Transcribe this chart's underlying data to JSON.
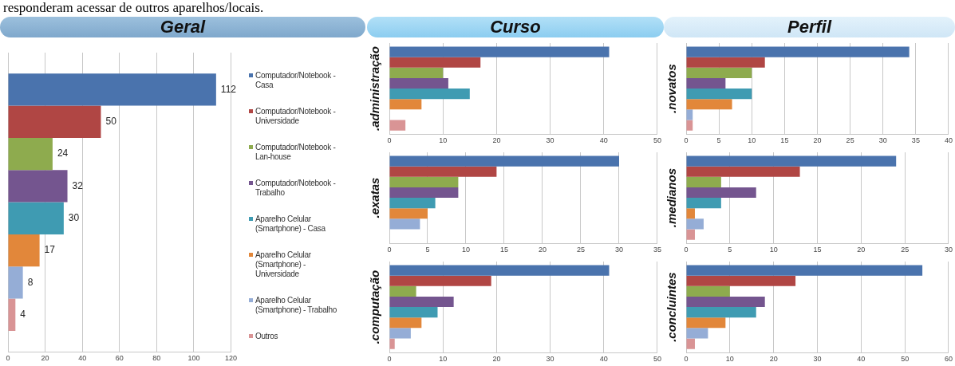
{
  "chart_data": [
    {
      "type": "bar",
      "orientation": "horizontal",
      "title": "Geral",
      "annotations": [
        "responderam acessar de outros aparelhos/locais."
      ],
      "categories": [
        null
      ],
      "xlim": [
        0,
        120
      ],
      "xticks": [
        0,
        20,
        40,
        60,
        80,
        100,
        120
      ],
      "grid": "x",
      "legend": "right",
      "data_labels": true,
      "series": [
        {
          "name": "Computador/Notebook - Casa",
          "color": "#4a73ad",
          "values": [
            112
          ]
        },
        {
          "name": "Computador/Notebook - Universidade",
          "color": "#b04644",
          "values": [
            50
          ]
        },
        {
          "name": "Computador/Notebook - Lan-house",
          "color": "#8eab4e",
          "values": [
            24
          ]
        },
        {
          "name": "Computador/Notebook - Trabalho",
          "color": "#74558f",
          "values": [
            32
          ]
        },
        {
          "name": "Aparelho Celular (Smartphone) - Casa",
          "color": "#3f9bb2",
          "values": [
            30
          ]
        },
        {
          "name": "Aparelho Celular (Smartphone) - Universidade",
          "color": "#e2873a",
          "values": [
            17
          ]
        },
        {
          "name": "Aparelho Celular (Smartphone) - Trabalho",
          "color": "#95add6",
          "values": [
            8
          ]
        },
        {
          "name": "Outros",
          "color": "#d99495",
          "values": [
            4
          ]
        }
      ]
    },
    {
      "type": "bar",
      "orientation": "horizontal",
      "title": "Curso",
      "ylabel": ".administração",
      "categories": [
        null
      ],
      "xlim": [
        0,
        50
      ],
      "xticks": [
        0,
        10,
        20,
        30,
        40,
        50
      ],
      "grid": "x",
      "series": [
        {
          "color": "#4a73ad",
          "values": [
            41
          ]
        },
        {
          "color": "#b04644",
          "values": [
            17
          ]
        },
        {
          "color": "#8eab4e",
          "values": [
            10
          ]
        },
        {
          "color": "#74558f",
          "values": [
            11
          ]
        },
        {
          "color": "#3f9bb2",
          "values": [
            15
          ]
        },
        {
          "color": "#e2873a",
          "values": [
            6
          ]
        },
        {
          "color": "#95add6",
          "values": [
            null
          ]
        },
        {
          "color": "#d99495",
          "values": [
            3
          ]
        }
      ]
    },
    {
      "type": "bar",
      "orientation": "horizontal",
      "ylabel": ".exatas",
      "categories": [
        null
      ],
      "xlim": [
        0,
        35
      ],
      "xticks": [
        0,
        5,
        10,
        15,
        20,
        25,
        30,
        35
      ],
      "grid": "x",
      "series": [
        {
          "color": "#4a73ad",
          "values": [
            30
          ]
        },
        {
          "color": "#b04644",
          "values": [
            14
          ]
        },
        {
          "color": "#8eab4e",
          "values": [
            9
          ]
        },
        {
          "color": "#74558f",
          "values": [
            9
          ]
        },
        {
          "color": "#3f9bb2",
          "values": [
            6
          ]
        },
        {
          "color": "#e2873a",
          "values": [
            5
          ]
        },
        {
          "color": "#95add6",
          "values": [
            4
          ]
        },
        {
          "color": "#d99495",
          "values": [
            null
          ]
        }
      ]
    },
    {
      "type": "bar",
      "orientation": "horizontal",
      "ylabel": ".computação",
      "categories": [
        null
      ],
      "xlim": [
        0,
        50
      ],
      "xticks": [
        0,
        10,
        20,
        30,
        40,
        50
      ],
      "grid": "x",
      "series": [
        {
          "color": "#4a73ad",
          "values": [
            41
          ]
        },
        {
          "color": "#b04644",
          "values": [
            19
          ]
        },
        {
          "color": "#8eab4e",
          "values": [
            5
          ]
        },
        {
          "color": "#74558f",
          "values": [
            12
          ]
        },
        {
          "color": "#3f9bb2",
          "values": [
            9
          ]
        },
        {
          "color": "#e2873a",
          "values": [
            6
          ]
        },
        {
          "color": "#95add6",
          "values": [
            4
          ]
        },
        {
          "color": "#d99495",
          "values": [
            1
          ]
        }
      ]
    },
    {
      "type": "bar",
      "orientation": "horizontal",
      "title": "Perfil",
      "ylabel": ".novatos",
      "categories": [
        null
      ],
      "xlim": [
        0,
        40
      ],
      "xticks": [
        0,
        5,
        10,
        15,
        20,
        25,
        30,
        35,
        40
      ],
      "grid": "x",
      "series": [
        {
          "color": "#4a73ad",
          "values": [
            34
          ]
        },
        {
          "color": "#b04644",
          "values": [
            12
          ]
        },
        {
          "color": "#8eab4e",
          "values": [
            10
          ]
        },
        {
          "color": "#74558f",
          "values": [
            6
          ]
        },
        {
          "color": "#3f9bb2",
          "values": [
            10
          ]
        },
        {
          "color": "#e2873a",
          "values": [
            7
          ]
        },
        {
          "color": "#95add6",
          "values": [
            1
          ]
        },
        {
          "color": "#d99495",
          "values": [
            1
          ]
        }
      ]
    },
    {
      "type": "bar",
      "orientation": "horizontal",
      "ylabel": ".medianos",
      "categories": [
        null
      ],
      "xlim": [
        0,
        30
      ],
      "xticks": [
        0,
        5,
        10,
        15,
        20,
        25,
        30
      ],
      "grid": "x",
      "series": [
        {
          "color": "#4a73ad",
          "values": [
            24
          ]
        },
        {
          "color": "#b04644",
          "values": [
            13
          ]
        },
        {
          "color": "#8eab4e",
          "values": [
            4
          ]
        },
        {
          "color": "#74558f",
          "values": [
            8
          ]
        },
        {
          "color": "#3f9bb2",
          "values": [
            4
          ]
        },
        {
          "color": "#e2873a",
          "values": [
            1
          ]
        },
        {
          "color": "#95add6",
          "values": [
            2
          ]
        },
        {
          "color": "#d99495",
          "values": [
            1
          ]
        }
      ]
    },
    {
      "type": "bar",
      "orientation": "horizontal",
      "ylabel": ".concluintes",
      "categories": [
        null
      ],
      "xlim": [
        0,
        60
      ],
      "xticks": [
        0,
        10,
        20,
        30,
        40,
        50,
        60
      ],
      "grid": "x",
      "series": [
        {
          "color": "#4a73ad",
          "values": [
            54
          ]
        },
        {
          "color": "#b04644",
          "values": [
            25
          ]
        },
        {
          "color": "#8eab4e",
          "values": [
            10
          ]
        },
        {
          "color": "#74558f",
          "values": [
            18
          ]
        },
        {
          "color": "#3f9bb2",
          "values": [
            16
          ]
        },
        {
          "color": "#e2873a",
          "values": [
            9
          ]
        },
        {
          "color": "#95add6",
          "values": [
            5
          ]
        },
        {
          "color": "#d99495",
          "values": [
            2
          ]
        }
      ]
    }
  ]
}
